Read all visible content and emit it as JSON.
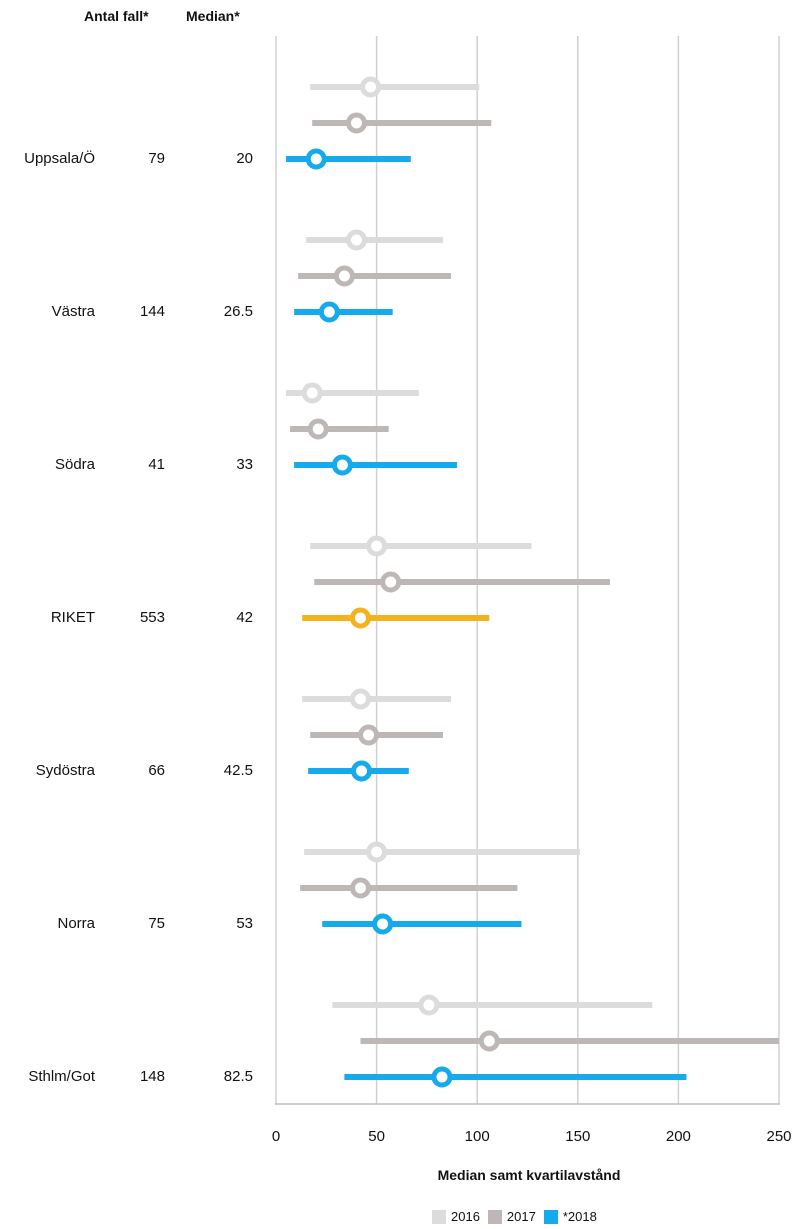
{
  "headers": {
    "count": "Antal fall*",
    "median": "Median*"
  },
  "chart_data": {
    "type": "dot-range",
    "xlabel": "Median samt kvartilavstånd",
    "xlim": [
      0,
      250
    ],
    "xticks": [
      0,
      50,
      100,
      150,
      200,
      250
    ],
    "grid": true,
    "legend_position": "bottom",
    "series_meta": [
      {
        "name": "2016",
        "color": "#dcdcdc"
      },
      {
        "name": "2017",
        "color": "#bdb8b6"
      },
      {
        "name": "*2018",
        "color": "#14aaeb"
      }
    ],
    "highlight_color": "#f5b21f",
    "rows": [
      {
        "region": "Uppsala/Ö",
        "count": "79",
        "median": "20",
        "highlight": false,
        "ranges": [
          {
            "low": 17,
            "median": 47,
            "high": 101
          },
          {
            "low": 18,
            "median": 40,
            "high": 107
          },
          {
            "low": 5,
            "median": 20,
            "high": 67
          }
        ]
      },
      {
        "region": "Västra",
        "count": "144",
        "median": "26.5",
        "highlight": false,
        "ranges": [
          {
            "low": 15,
            "median": 40,
            "high": 83
          },
          {
            "low": 11,
            "median": 34,
            "high": 87
          },
          {
            "low": 9,
            "median": 26.5,
            "high": 58
          }
        ]
      },
      {
        "region": "Södra",
        "count": "41",
        "median": "33",
        "highlight": false,
        "ranges": [
          {
            "low": 5,
            "median": 18,
            "high": 71
          },
          {
            "low": 7,
            "median": 21,
            "high": 56
          },
          {
            "low": 9,
            "median": 33,
            "high": 90
          }
        ]
      },
      {
        "region": "RIKET",
        "count": "553",
        "median": "42",
        "highlight": true,
        "ranges": [
          {
            "low": 17,
            "median": 50,
            "high": 127
          },
          {
            "low": 19,
            "median": 57,
            "high": 166
          },
          {
            "low": 13,
            "median": 42,
            "high": 106
          }
        ]
      },
      {
        "region": "Sydöstra",
        "count": "66",
        "median": "42.5",
        "highlight": false,
        "ranges": [
          {
            "low": 13,
            "median": 42,
            "high": 87
          },
          {
            "low": 17,
            "median": 46,
            "high": 83
          },
          {
            "low": 16,
            "median": 42.5,
            "high": 66
          }
        ]
      },
      {
        "region": "Norra",
        "count": "75",
        "median": "53",
        "highlight": false,
        "ranges": [
          {
            "low": 14,
            "median": 50,
            "high": 151
          },
          {
            "low": 12,
            "median": 42,
            "high": 120
          },
          {
            "low": 23,
            "median": 53,
            "high": 122
          }
        ]
      },
      {
        "region": "Sthlm/Got",
        "count": "148",
        "median": "82.5",
        "highlight": false,
        "ranges": [
          {
            "low": 28,
            "median": 76,
            "high": 187
          },
          {
            "low": 42,
            "median": 106,
            "high": 250
          },
          {
            "low": 34,
            "median": 82.5,
            "high": 204
          }
        ]
      }
    ]
  }
}
